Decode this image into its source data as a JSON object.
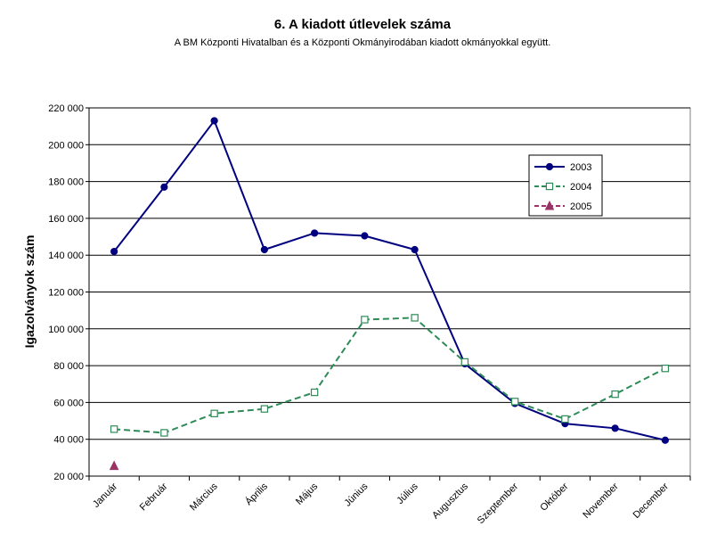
{
  "chart_data": {
    "type": "line",
    "title": "6. A  kiadott útlevelek száma",
    "subtitle": "A BM Központi Hivatalban és a Központi Okmányirodában kiadott okmányokkal együtt.",
    "xlabel": "",
    "ylabel": "Igazolványok szám",
    "categories": [
      "Január",
      "Február",
      "Március",
      "Április",
      "Május",
      "Június",
      "Július",
      "Augusztus",
      "Szeptember",
      "Október",
      "November",
      "December"
    ],
    "ylim": [
      20000,
      220000
    ],
    "yticks": [
      20000,
      40000,
      60000,
      80000,
      100000,
      120000,
      140000,
      160000,
      180000,
      200000,
      220000
    ],
    "ytick_labels": [
      "20 000",
      "40 000",
      "60 000",
      "80 000",
      "100 000",
      "120 000",
      "140 000",
      "160 000",
      "180 000",
      "200 000",
      "220 000"
    ],
    "grid": "horizontal",
    "legend_position": "right",
    "series": [
      {
        "name": "2003",
        "color": "#000080",
        "line_style": "solid",
        "marker": "diamond",
        "values": [
          142000,
          177000,
          213000,
          143000,
          152000,
          150500,
          143000,
          81000,
          59500,
          48500,
          46000,
          39500
        ]
      },
      {
        "name": "2004",
        "color": "#2E8B57",
        "line_style": "dashed",
        "marker": "open-square",
        "values": [
          45500,
          43500,
          54000,
          56500,
          65500,
          105000,
          106000,
          82000,
          60500,
          51000,
          64500,
          78500
        ]
      },
      {
        "name": "2005",
        "color": "#993366",
        "line_style": "dashed",
        "marker": "triangle",
        "values": [
          25500,
          null,
          null,
          null,
          null,
          null,
          null,
          null,
          null,
          null,
          null,
          null
        ]
      }
    ]
  }
}
